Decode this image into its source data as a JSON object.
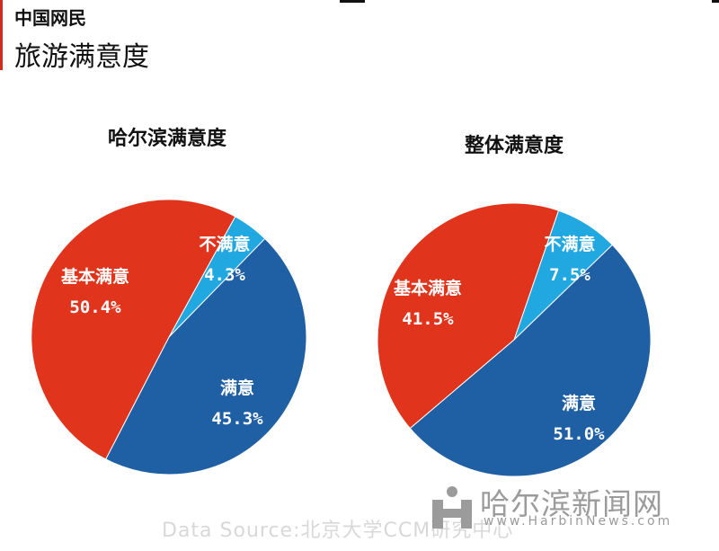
{
  "header": {
    "line1": "中国网民",
    "line2": "旅游满意度"
  },
  "colors": {
    "satisfied": "#1f5fa3",
    "basic": "#e0341c",
    "unsatisfied": "#22a8e0",
    "accent": "#d42a1c"
  },
  "chart_data": [
    {
      "type": "pie",
      "title": "哈尔滨满意度",
      "slices": [
        {
          "label": "不满意",
          "value": 4.3,
          "display": "4.3%",
          "color": "#22a8e0"
        },
        {
          "label": "满意",
          "value": 45.3,
          "display": "45.3%",
          "color": "#1f5fa3"
        },
        {
          "label": "基本满意",
          "value": 50.4,
          "display": "50.4%",
          "color": "#e0341c"
        }
      ]
    },
    {
      "type": "pie",
      "title": "整体满意度",
      "slices": [
        {
          "label": "不满意",
          "value": 7.5,
          "display": "7.5%",
          "color": "#22a8e0"
        },
        {
          "label": "满意",
          "value": 51.0,
          "display": "51.0%",
          "color": "#1f5fa3"
        },
        {
          "label": "基本满意",
          "value": 41.5,
          "display": "41.5%",
          "color": "#e0341c"
        }
      ]
    }
  ],
  "footer": {
    "source": "Data Source:北京大学CCM研究中心",
    "brand_name": "哈尔滨新闻网",
    "brand_url": "www.HarbinNews.com",
    "logo_icon": "harbin-news-logo-icon"
  }
}
